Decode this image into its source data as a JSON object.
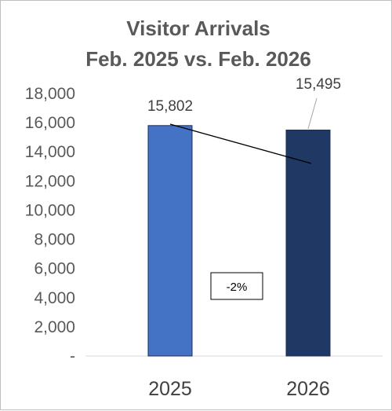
{
  "chart_data": {
    "type": "bar",
    "title": "Visitor Arrivals",
    "subtitle": "Feb. 2025 vs. Feb. 2026",
    "categories": [
      "2025",
      "2026"
    ],
    "values": [
      15802,
      15495
    ],
    "data_labels": [
      "15,802",
      "15,495"
    ],
    "yticks": [
      "-",
      "2,000",
      "4,000",
      "6,000",
      "8,000",
      "10,000",
      "12,000",
      "14,000",
      "16,000",
      "18,000"
    ],
    "ylim": [
      0,
      18000
    ],
    "grid": false,
    "legend": "none",
    "annotation": "-2%",
    "colors": [
      "#4472C4",
      "#1F3864"
    ]
  }
}
